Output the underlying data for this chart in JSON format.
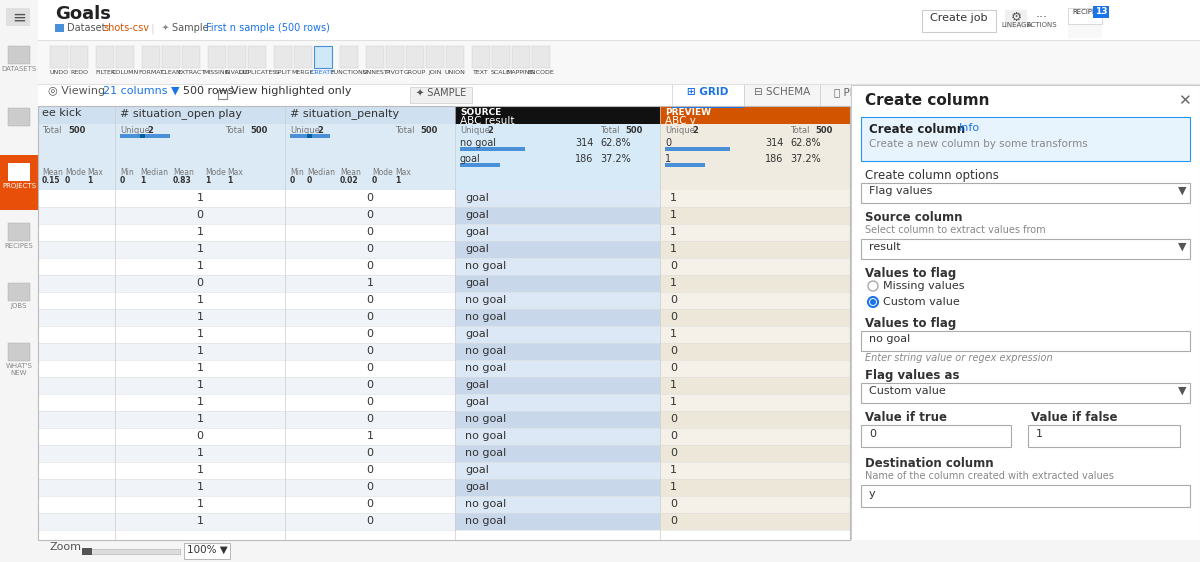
{
  "title": "Goals",
  "dataset_label": "Dataset: shots-csv",
  "sample_label": "Sample: First n sample (500 rows)",
  "bg_color": "#ffffff",
  "sidebar_color": "#e8500a",
  "data_rows": [
    [
      1,
      0,
      "goal",
      1
    ],
    [
      0,
      0,
      "goal",
      1
    ],
    [
      1,
      0,
      "goal",
      1
    ],
    [
      1,
      0,
      "goal",
      1
    ],
    [
      1,
      0,
      "no goal",
      0
    ],
    [
      0,
      1,
      "goal",
      1
    ],
    [
      1,
      0,
      "no goal",
      0
    ],
    [
      1,
      0,
      "no goal",
      0
    ],
    [
      1,
      0,
      "goal",
      1
    ],
    [
      1,
      0,
      "no goal",
      0
    ],
    [
      1,
      0,
      "no goal",
      0
    ],
    [
      1,
      0,
      "goal",
      1
    ],
    [
      1,
      0,
      "goal",
      1
    ],
    [
      1,
      0,
      "no goal",
      0
    ],
    [
      0,
      1,
      "no goal",
      0
    ],
    [
      1,
      0,
      "no goal",
      0
    ],
    [
      1,
      0,
      "goal",
      1
    ],
    [
      1,
      0,
      "goal",
      1
    ],
    [
      1,
      0,
      "no goal",
      0
    ],
    [
      1,
      0,
      "no goal",
      0
    ]
  ],
  "create_col_options": "Flag values",
  "source_col_val": "result",
  "radio_missing": "Missing values",
  "radio_custom": "Custom value",
  "values_to_flag_val": "no goal",
  "hint_text": "Enter string value or regex expression",
  "flag_values_as_val": "Custom value",
  "value_if_true": "0",
  "value_if_false": "1",
  "dest_col_val": "y",
  "source_header_bg": "#111111",
  "preview_header_bg": "#d35400",
  "row_colors": [
    "#ffffff",
    "#f0f4f8"
  ],
  "source_row_colors": [
    "#dce8f5",
    "#c8d8ea"
  ],
  "preview_row_colors": [
    "#f5f0e8",
    "#ece7d8"
  ],
  "col_header_bg": "#cfe0f0",
  "stats_bg": "#dceaf5",
  "panel_bg": "#ffffff",
  "panel_border": "#cccccc",
  "blue_bar_color": "#4a90d9",
  "info_box_bg": "#e8f4fd",
  "info_box_border": "#2196f3"
}
